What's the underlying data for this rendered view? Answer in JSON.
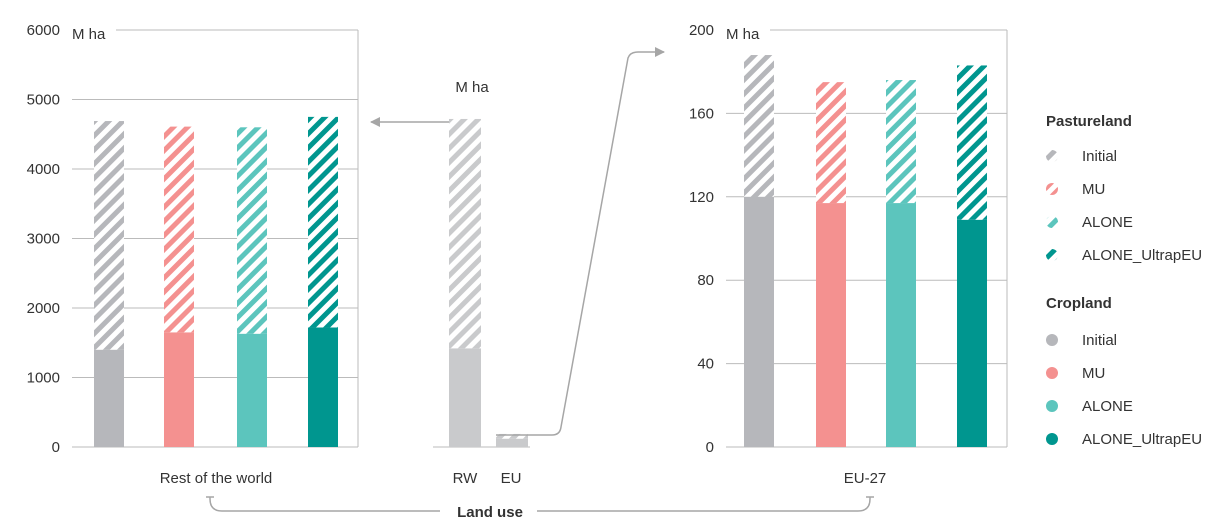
{
  "colors": {
    "initial": "#b6b7bb",
    "mu": "#f49190",
    "alone": "#5cc5bd",
    "ultrap": "#00968f",
    "mini": "#c9cacc",
    "axis": "#bbbbbb",
    "arrow": "#a6a6a6"
  },
  "chart_data": [
    {
      "type": "bar",
      "stacked": true,
      "panel": "rest-of-world",
      "unit_label": "M ha",
      "category_label": "Rest of the world",
      "ylim": [
        0,
        6000
      ],
      "yticks": [
        "0",
        "1000",
        "2000",
        "3000",
        "4000",
        "5000",
        "6000"
      ],
      "categories": [
        "Initial",
        "MU",
        "ALONE",
        "ALONE_UltrapEU"
      ],
      "series": [
        {
          "name": "Cropland",
          "values": [
            1400,
            1650,
            1630,
            1720
          ]
        },
        {
          "name": "Pastureland",
          "values": [
            3290,
            2960,
            2970,
            3030
          ]
        }
      ]
    },
    {
      "type": "bar",
      "stacked": true,
      "panel": "overview",
      "unit_label": "M ha",
      "ylim": [
        0,
        6000
      ],
      "categories": [
        "RW",
        "EU"
      ],
      "series": [
        {
          "name": "Cropland",
          "values": [
            1420,
            120
          ]
        },
        {
          "name": "Pastureland",
          "values": [
            3300,
            68
          ]
        }
      ]
    },
    {
      "type": "bar",
      "stacked": true,
      "panel": "eu-27",
      "unit_label": "M ha",
      "category_label": "EU-27",
      "ylim": [
        0,
        200
      ],
      "yticks": [
        "0",
        "40",
        "80",
        "120",
        "160",
        "200"
      ],
      "categories": [
        "Initial",
        "MU",
        "ALONE",
        "ALONE_UltrapEU"
      ],
      "series": [
        {
          "name": "Cropland",
          "values": [
            120,
            117,
            117,
            109
          ]
        },
        {
          "name": "Pastureland",
          "values": [
            68,
            58,
            59,
            74
          ]
        }
      ]
    }
  ],
  "legend": {
    "pasture_title": "Pastureland",
    "pasture_items": [
      "Initial",
      "MU",
      "ALONE",
      "ALONE_UltrapEU"
    ],
    "crop_title": "Cropland",
    "crop_items": [
      "Initial",
      "MU",
      "ALONE",
      "ALONE_UltrapEU"
    ]
  },
  "footer": {
    "label": "Land use"
  }
}
